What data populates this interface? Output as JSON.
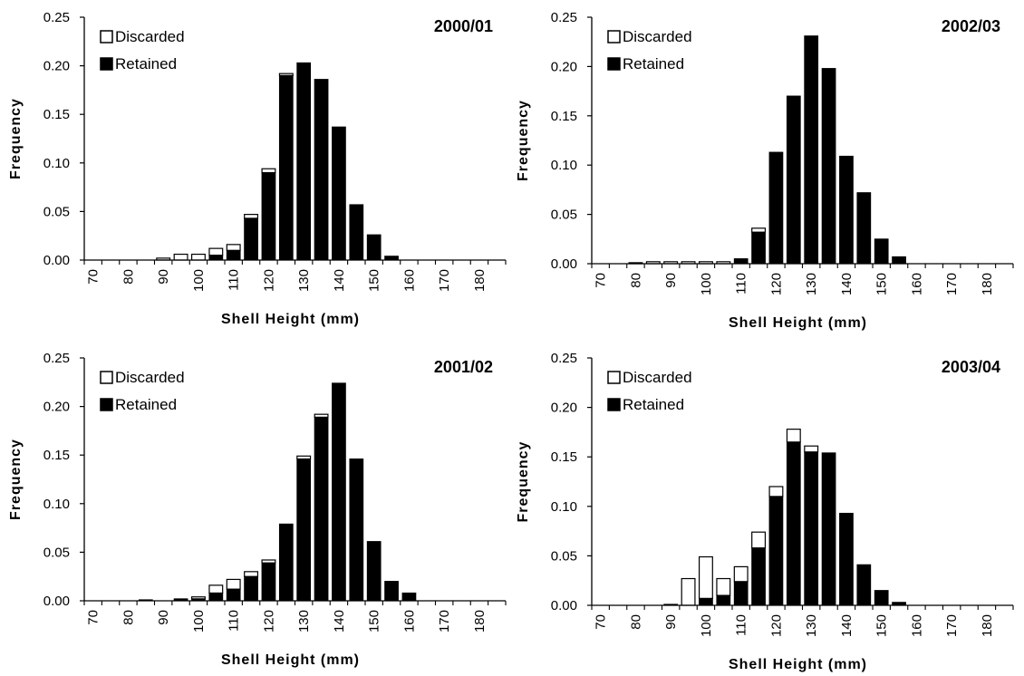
{
  "chart_data": [
    {
      "type": "bar",
      "stacked": true,
      "title": "2000/01",
      "xlabel": "Shell Height (mm)",
      "ylabel": "Frequency",
      "ylim": [
        0,
        0.25
      ],
      "yticks": [
        "0.00",
        "0.05",
        "0.10",
        "0.15",
        "0.20",
        "0.25"
      ],
      "categories": [
        "70",
        "75",
        "80",
        "85",
        "90",
        "95",
        "100",
        "105",
        "110",
        "115",
        "120",
        "125",
        "130",
        "135",
        "140",
        "145",
        "150",
        "155",
        "160",
        "165",
        "170",
        "175",
        "180",
        "185"
      ],
      "xtick_labels": [
        "70",
        "80",
        "90",
        "100",
        "110",
        "120",
        "130",
        "140",
        "150",
        "160",
        "170",
        "180"
      ],
      "legend": {
        "position": "top-left",
        "entries": [
          "Discarded",
          "Retained"
        ]
      },
      "series": [
        {
          "name": "Retained",
          "color": "#000000",
          "values": [
            0,
            0,
            0,
            0,
            0,
            0,
            0,
            0.005,
            0.01,
            0.043,
            0.09,
            0.19,
            0.203,
            0.186,
            0.137,
            0.057,
            0.026,
            0.004,
            0,
            0,
            0,
            0,
            0,
            0
          ]
        },
        {
          "name": "Discarded",
          "color": "#ffffff",
          "values": [
            0,
            0,
            0,
            0,
            0.002,
            0.006,
            0.006,
            0.007,
            0.006,
            0.004,
            0.004,
            0.002,
            0,
            0,
            0,
            0,
            0,
            0,
            0,
            0,
            0,
            0,
            0,
            0
          ]
        }
      ]
    },
    {
      "type": "bar",
      "stacked": true,
      "title": "2002/03",
      "xlabel": "Shell Height (mm)",
      "ylabel": "Frequency",
      "ylim": [
        0,
        0.25
      ],
      "yticks": [
        "0.00",
        "0.05",
        "0.10",
        "0.15",
        "0.20",
        "0.25"
      ],
      "categories": [
        "70",
        "75",
        "80",
        "85",
        "90",
        "95",
        "100",
        "105",
        "110",
        "115",
        "120",
        "125",
        "130",
        "135",
        "140",
        "145",
        "150",
        "155",
        "160",
        "165",
        "170",
        "175",
        "180",
        "185"
      ],
      "xtick_labels": [
        "70",
        "80",
        "90",
        "100",
        "110",
        "120",
        "130",
        "140",
        "150",
        "160",
        "170",
        "180"
      ],
      "legend": {
        "position": "top-left",
        "entries": [
          "Discarded",
          "Retained"
        ]
      },
      "series": [
        {
          "name": "Retained",
          "color": "#000000",
          "values": [
            0,
            0,
            0,
            0,
            0,
            0,
            0,
            0,
            0.005,
            0.032,
            0.113,
            0.17,
            0.231,
            0.198,
            0.109,
            0.072,
            0.025,
            0.007,
            0,
            0,
            0,
            0,
            0,
            0
          ]
        },
        {
          "name": "Discarded",
          "color": "#ffffff",
          "values": [
            0,
            0,
            0.001,
            0.002,
            0.002,
            0.002,
            0.002,
            0.002,
            0,
            0.004,
            0,
            0,
            0,
            0,
            0,
            0,
            0,
            0,
            0,
            0,
            0,
            0,
            0,
            0
          ]
        }
      ]
    },
    {
      "type": "bar",
      "stacked": true,
      "title": "2001/02",
      "xlabel": "Shell Height (mm)",
      "ylabel": "Frequency",
      "ylim": [
        0,
        0.25
      ],
      "yticks": [
        "0.00",
        "0.05",
        "0.10",
        "0.15",
        "0.20",
        "0.25"
      ],
      "categories": [
        "70",
        "75",
        "80",
        "85",
        "90",
        "95",
        "100",
        "105",
        "110",
        "115",
        "120",
        "125",
        "130",
        "135",
        "140",
        "145",
        "150",
        "155",
        "160",
        "165",
        "170",
        "175",
        "180",
        "185"
      ],
      "xtick_labels": [
        "70",
        "80",
        "90",
        "100",
        "110",
        "120",
        "130",
        "140",
        "150",
        "160",
        "170",
        "180"
      ],
      "legend": {
        "position": "top-left",
        "entries": [
          "Discarded",
          "Retained"
        ]
      },
      "series": [
        {
          "name": "Retained",
          "color": "#000000",
          "values": [
            0,
            0,
            0,
            0.001,
            0,
            0.002,
            0.002,
            0.008,
            0.012,
            0.025,
            0.039,
            0.079,
            0.146,
            0.189,
            0.224,
            0.146,
            0.061,
            0.02,
            0.008,
            0,
            0,
            0,
            0,
            0
          ]
        },
        {
          "name": "Discarded",
          "color": "#ffffff",
          "values": [
            0,
            0,
            0,
            0,
            0,
            0,
            0.002,
            0.008,
            0.01,
            0.005,
            0.003,
            0,
            0.003,
            0.003,
            0,
            0,
            0,
            0,
            0,
            0,
            0,
            0,
            0,
            0
          ]
        }
      ]
    },
    {
      "type": "bar",
      "stacked": true,
      "title": "2003/04",
      "xlabel": "Shell Height (mm)",
      "ylabel": "Frequency",
      "ylim": [
        0,
        0.25
      ],
      "yticks": [
        "0.00",
        "0.05",
        "0.10",
        "0.15",
        "0.20",
        "0.25"
      ],
      "categories": [
        "70",
        "75",
        "80",
        "85",
        "90",
        "95",
        "100",
        "105",
        "110",
        "115",
        "120",
        "125",
        "130",
        "135",
        "140",
        "145",
        "150",
        "155",
        "160",
        "165",
        "170",
        "175",
        "180",
        "185"
      ],
      "xtick_labels": [
        "70",
        "80",
        "90",
        "100",
        "110",
        "120",
        "130",
        "140",
        "150",
        "160",
        "170",
        "180"
      ],
      "legend": {
        "position": "top-left",
        "entries": [
          "Discarded",
          "Retained"
        ]
      },
      "series": [
        {
          "name": "Retained",
          "color": "#000000",
          "values": [
            0,
            0,
            0,
            0,
            0.001,
            0,
            0.007,
            0.01,
            0.024,
            0.058,
            0.11,
            0.165,
            0.155,
            0.154,
            0.093,
            0.041,
            0.015,
            0.003,
            0,
            0,
            0,
            0,
            0,
            0
          ]
        },
        {
          "name": "Discarded",
          "color": "#ffffff",
          "values": [
            0,
            0,
            0,
            0,
            0,
            0.027,
            0.042,
            0.017,
            0.015,
            0.016,
            0.01,
            0.013,
            0.006,
            0,
            0,
            0,
            0,
            0,
            0,
            0,
            0,
            0,
            0,
            0
          ]
        }
      ]
    }
  ]
}
